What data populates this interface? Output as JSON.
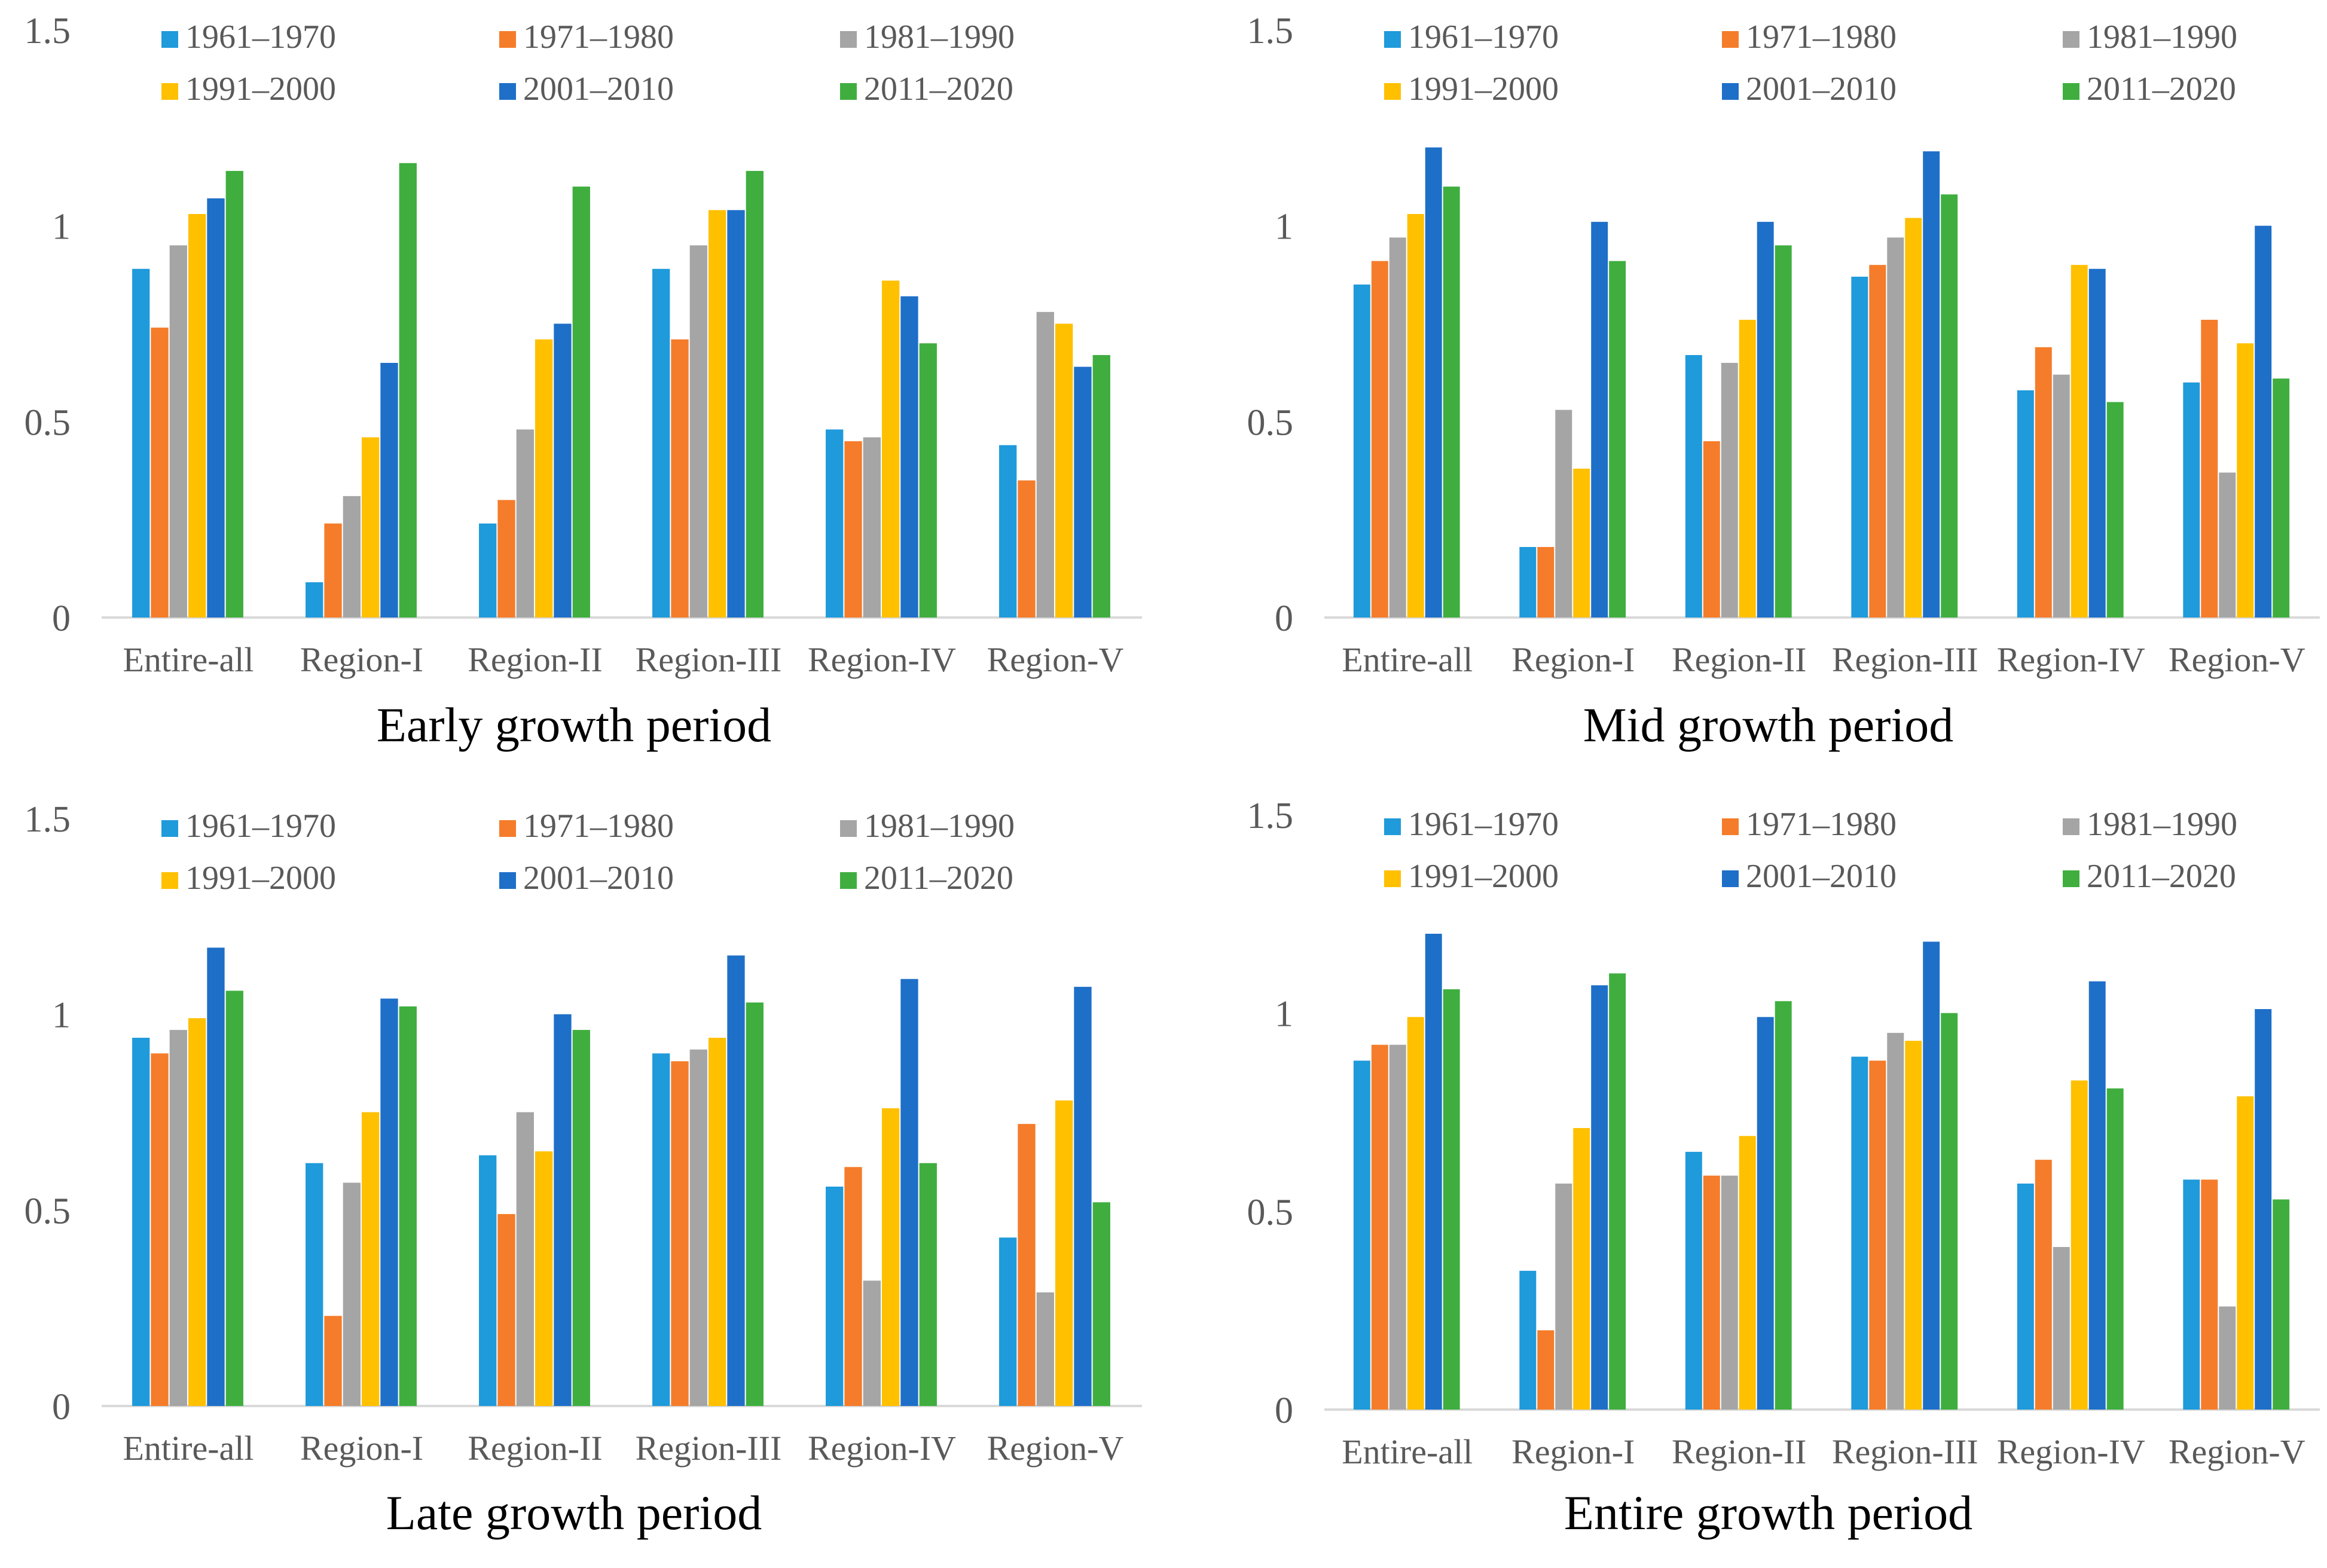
{
  "chart_data": [
    {
      "type": "bar",
      "title": "Early growth period",
      "categories": [
        "Entire-all",
        "Region-I",
        "Region-II",
        "Region-III",
        "Region-IV",
        "Region-V"
      ],
      "ylim": [
        0,
        1.5
      ],
      "yticks": [
        "0",
        "0.5",
        "1",
        "1.5"
      ],
      "legend": "top",
      "series": [
        {
          "name": "1961–1970",
          "color": "#1F9ADB",
          "values": [
            0.89,
            0.09,
            0.24,
            0.89,
            0.48,
            0.44
          ]
        },
        {
          "name": "1971–1980",
          "color": "#F57C2A",
          "values": [
            0.74,
            0.24,
            0.3,
            0.71,
            0.45,
            0.35
          ]
        },
        {
          "name": "1981–1990",
          "color": "#A5A5A5",
          "values": [
            0.95,
            0.31,
            0.48,
            0.95,
            0.46,
            0.78
          ]
        },
        {
          "name": "1991–2000",
          "color": "#FFC000",
          "values": [
            1.03,
            0.46,
            0.71,
            1.04,
            0.86,
            0.75
          ]
        },
        {
          "name": "2001–2010",
          "color": "#1E6FC8",
          "values": [
            1.07,
            0.65,
            0.75,
            1.04,
            0.82,
            0.64
          ]
        },
        {
          "name": "2011–2020",
          "color": "#3FAE3F",
          "values": [
            1.14,
            1.16,
            1.1,
            1.14,
            0.7,
            0.67
          ]
        }
      ]
    },
    {
      "type": "bar",
      "title": "Mid growth period",
      "categories": [
        "Entire-all",
        "Region-I",
        "Region-II",
        "Region-III",
        "Region-IV",
        "Region-V"
      ],
      "ylim": [
        0,
        1.5
      ],
      "yticks": [
        "0",
        "0.5",
        "1",
        "1.5"
      ],
      "legend": "top",
      "series": [
        {
          "name": "1961–1970",
          "color": "#1F9ADB",
          "values": [
            0.85,
            0.18,
            0.67,
            0.87,
            0.58,
            0.6
          ]
        },
        {
          "name": "1971–1980",
          "color": "#F57C2A",
          "values": [
            0.91,
            0.18,
            0.45,
            0.9,
            0.69,
            0.76
          ]
        },
        {
          "name": "1981–1990",
          "color": "#A5A5A5",
          "values": [
            0.97,
            0.53,
            0.65,
            0.97,
            0.62,
            0.37
          ]
        },
        {
          "name": "1991–2000",
          "color": "#FFC000",
          "values": [
            1.03,
            0.38,
            0.76,
            1.02,
            0.9,
            0.7
          ]
        },
        {
          "name": "2001–2010",
          "color": "#1E6FC8",
          "values": [
            1.2,
            1.01,
            1.01,
            1.19,
            0.89,
            1.0
          ]
        },
        {
          "name": "2011–2020",
          "color": "#3FAE3F",
          "values": [
            1.1,
            0.91,
            0.95,
            1.08,
            0.55,
            0.61
          ]
        }
      ]
    },
    {
      "type": "bar",
      "title": "Late growth period",
      "categories": [
        "Entire-all",
        "Region-I",
        "Region-II",
        "Region-III",
        "Region-IV",
        "Region-V"
      ],
      "ylim": [
        0,
        1.5
      ],
      "yticks": [
        "0",
        "0.5",
        "1",
        "1.5"
      ],
      "legend": "top",
      "series": [
        {
          "name": "1961–1970",
          "color": "#1F9ADB",
          "values": [
            0.94,
            0.62,
            0.64,
            0.9,
            0.56,
            0.43
          ]
        },
        {
          "name": "1971–1980",
          "color": "#F57C2A",
          "values": [
            0.9,
            0.23,
            0.49,
            0.88,
            0.61,
            0.72
          ]
        },
        {
          "name": "1981–1990",
          "color": "#A5A5A5",
          "values": [
            0.96,
            0.57,
            0.75,
            0.91,
            0.32,
            0.29
          ]
        },
        {
          "name": "1991–2000",
          "color": "#FFC000",
          "values": [
            0.99,
            0.75,
            0.65,
            0.94,
            0.76,
            0.78
          ]
        },
        {
          "name": "2001–2010",
          "color": "#1E6FC8",
          "values": [
            1.17,
            1.04,
            1.0,
            1.15,
            1.09,
            1.07
          ]
        },
        {
          "name": "2011–2020",
          "color": "#3FAE3F",
          "values": [
            1.06,
            1.02,
            0.96,
            1.03,
            0.62,
            0.52
          ]
        }
      ]
    },
    {
      "type": "bar",
      "title": "Entire growth period",
      "categories": [
        "Entire-all",
        "Region-I",
        "Region-II",
        "Region-III",
        "Region-IV",
        "Region-V"
      ],
      "ylim": [
        0,
        1.5
      ],
      "yticks": [
        "0",
        "0.5",
        "1",
        "1.5"
      ],
      "legend": "top",
      "series": [
        {
          "name": "1961–1970",
          "color": "#1F9ADB",
          "values": [
            0.88,
            0.35,
            0.65,
            0.89,
            0.57,
            0.58
          ]
        },
        {
          "name": "1971–1980",
          "color": "#F57C2A",
          "values": [
            0.92,
            0.2,
            0.59,
            0.88,
            0.63,
            0.58
          ]
        },
        {
          "name": "1981–1990",
          "color": "#A5A5A5",
          "values": [
            0.92,
            0.57,
            0.59,
            0.95,
            0.41,
            0.26
          ]
        },
        {
          "name": "1991–2000",
          "color": "#FFC000",
          "values": [
            0.99,
            0.71,
            0.69,
            0.93,
            0.83,
            0.79
          ]
        },
        {
          "name": "2001–2010",
          "color": "#1E6FC8",
          "values": [
            1.2,
            1.07,
            0.99,
            1.18,
            1.08,
            1.01
          ]
        },
        {
          "name": "2011–2020",
          "color": "#3FAE3F",
          "values": [
            1.06,
            1.1,
            1.03,
            1.0,
            0.81,
            0.53
          ]
        }
      ]
    }
  ]
}
